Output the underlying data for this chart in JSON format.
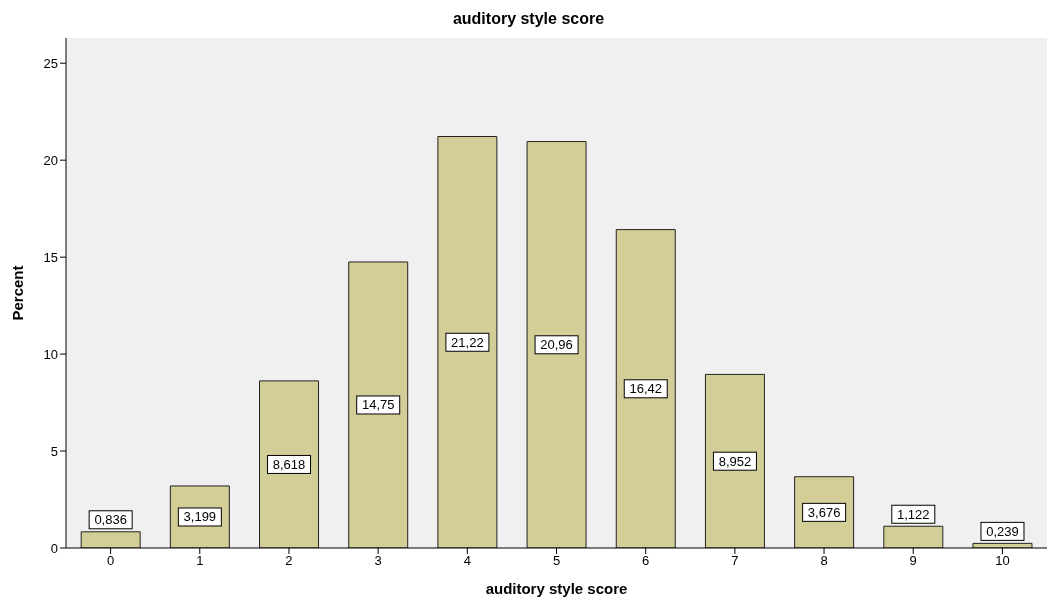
{
  "chart_data": {
    "type": "bar",
    "title": "auditory style score",
    "xlabel": "auditory style score",
    "ylabel": "Percent",
    "categories": [
      "0",
      "1",
      "2",
      "3",
      "4",
      "5",
      "6",
      "7",
      "8",
      "9",
      "10"
    ],
    "values": [
      0.836,
      3.199,
      8.618,
      14.75,
      21.22,
      20.96,
      16.42,
      8.952,
      3.676,
      1.122,
      0.239
    ],
    "value_labels": [
      "0,836",
      "3,199",
      "8,618",
      "14,75",
      "21,22",
      "20,96",
      "16,42",
      "8,952",
      "3,676",
      "1,122",
      "0,239"
    ],
    "color": "#d3ce97",
    "ylim": [
      0,
      26.3
    ],
    "yticks": [
      0,
      5,
      10,
      15,
      20,
      25
    ],
    "grid": false,
    "legend": false
  }
}
